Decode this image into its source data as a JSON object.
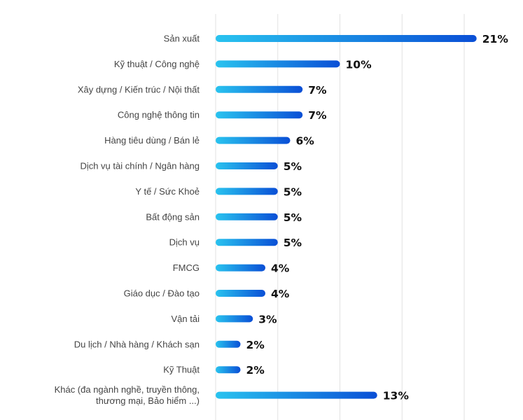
{
  "chart_data": {
    "type": "bar",
    "orientation": "horizontal",
    "categories": [
      [
        "Sản xuất"
      ],
      [
        "Kỹ thuật / Công nghệ"
      ],
      [
        "Xây dựng / Kiến trúc / Nội thất"
      ],
      [
        "Công nghệ thông tin"
      ],
      [
        "Hàng tiêu dùng / Bán lẻ"
      ],
      [
        "Dịch vụ tài chính / Ngân hàng"
      ],
      [
        "Y tế / Sức Khoẻ"
      ],
      [
        "Bất động sản"
      ],
      [
        "Dịch vụ"
      ],
      [
        "FMCG"
      ],
      [
        "Giáo dục / Đào tạo"
      ],
      [
        "Vận tải"
      ],
      [
        "Du lịch / Nhà hàng / Khách sạn"
      ],
      [
        "Kỹ Thuật"
      ],
      [
        "Khác (đa ngành nghề, truyền thông,",
        "thương mại, Bảo hiểm ...)"
      ]
    ],
    "values": [
      21,
      10,
      7,
      7,
      6,
      5,
      5,
      5,
      5,
      4,
      4,
      3,
      2,
      2,
      13
    ],
    "value_labels": [
      "21%",
      "10%",
      "7%",
      "7%",
      "6%",
      "5%",
      "5%",
      "5%",
      "5%",
      "4%",
      "4%",
      "3%",
      "2%",
      "2%",
      "13%"
    ],
    "xlim": [
      0,
      23
    ],
    "grid": true,
    "title": "",
    "xlabel": "",
    "ylabel": "",
    "colors": {
      "bar_start": "#29c3ef",
      "bar_end": "#0a4fd6",
      "grid": "#e2e2e2",
      "label": "#444444",
      "value": "#111111"
    }
  }
}
